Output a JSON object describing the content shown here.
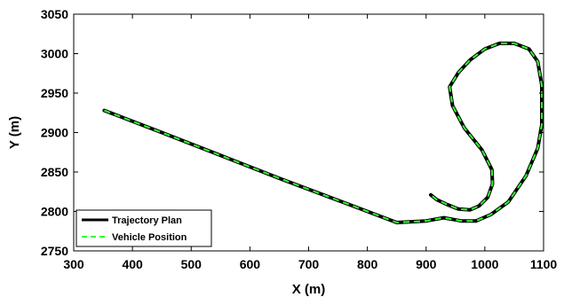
{
  "chart_data": {
    "type": "line",
    "xlabel": "X (m)",
    "ylabel": "Y (m)",
    "xlim": [
      300,
      1100
    ],
    "ylim": [
      2750,
      3050
    ],
    "xticks": [
      300,
      400,
      500,
      600,
      700,
      800,
      900,
      1000,
      1100
    ],
    "yticks": [
      2750,
      2800,
      2850,
      2900,
      2950,
      3000,
      3050
    ],
    "grid": false,
    "legend_position": "bottom-left",
    "series": [
      {
        "name": "Trajectory Plan",
        "color": "#000000",
        "style": "solid",
        "x": [
          352,
          450,
          550,
          650,
          750,
          850,
          900,
          930,
          960,
          985,
          1010,
          1040,
          1070,
          1090,
          1097,
          1097,
          1090,
          1075,
          1050,
          1025,
          1000,
          975,
          955,
          940,
          945,
          965,
          995,
          1012,
          1013,
          1005,
          990,
          975,
          955,
          935,
          918,
          908
        ],
        "y": [
          2928,
          2900,
          2871,
          2842,
          2814,
          2786,
          2788,
          2792,
          2788,
          2788,
          2796,
          2812,
          2845,
          2880,
          2910,
          2960,
          2990,
          3006,
          3013,
          3013,
          3006,
          2992,
          2976,
          2958,
          2934,
          2906,
          2878,
          2853,
          2835,
          2818,
          2807,
          2802,
          2803,
          2809,
          2815,
          2821
        ]
      },
      {
        "name": "Vehicle Position",
        "color": "#33ff33",
        "style": "dashed",
        "x": [
          352,
          450,
          550,
          650,
          750,
          850,
          900,
          930,
          960,
          985,
          1010,
          1040,
          1070,
          1090,
          1097,
          1097,
          1090,
          1075,
          1050,
          1025,
          1000,
          975,
          955,
          940,
          945,
          965,
          995,
          1012,
          1013,
          1005,
          990,
          975,
          955,
          935,
          918,
          908
        ],
        "y": [
          2928,
          2900,
          2871,
          2842,
          2814,
          2786,
          2788,
          2792,
          2788,
          2788,
          2796,
          2812,
          2845,
          2880,
          2910,
          2960,
          2990,
          3006,
          3013,
          3013,
          3006,
          2992,
          2976,
          2958,
          2934,
          2906,
          2878,
          2853,
          2835,
          2818,
          2807,
          2802,
          2803,
          2809,
          2815,
          2821
        ]
      }
    ]
  }
}
